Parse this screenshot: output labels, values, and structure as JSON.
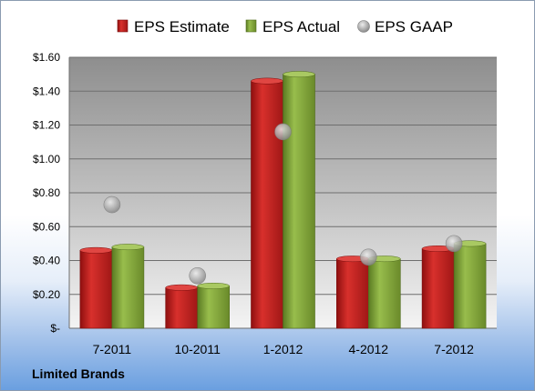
{
  "company": "Limited Brands",
  "colors": {
    "estimate": "#c8201f",
    "actual": "#7fa23a",
    "gaap": "#a8a8a8"
  },
  "chart_data": {
    "type": "bar",
    "categories": [
      "7-2011",
      "10-2011",
      "1-2012",
      "4-2012",
      "7-2012"
    ],
    "series": [
      {
        "name": "EPS Estimate",
        "kind": "bar",
        "values": [
          0.46,
          0.24,
          1.46,
          0.41,
          0.47
        ]
      },
      {
        "name": "EPS Actual",
        "kind": "bar",
        "values": [
          0.48,
          0.25,
          1.5,
          0.41,
          0.5
        ]
      },
      {
        "name": "EPS GAAP",
        "kind": "marker",
        "values": [
          0.73,
          0.31,
          1.16,
          0.42,
          0.5
        ]
      }
    ],
    "ylim": [
      0,
      1.6
    ],
    "yticks": [
      0,
      0.2,
      0.4,
      0.6,
      0.8,
      1.0,
      1.2,
      1.4,
      1.6
    ],
    "ytick_labels": [
      "$-",
      "$0.20",
      "$0.40",
      "$0.60",
      "$0.80",
      "$1.00",
      "$1.20",
      "$1.40",
      "$1.60"
    ],
    "grid": true,
    "legend": "top"
  }
}
